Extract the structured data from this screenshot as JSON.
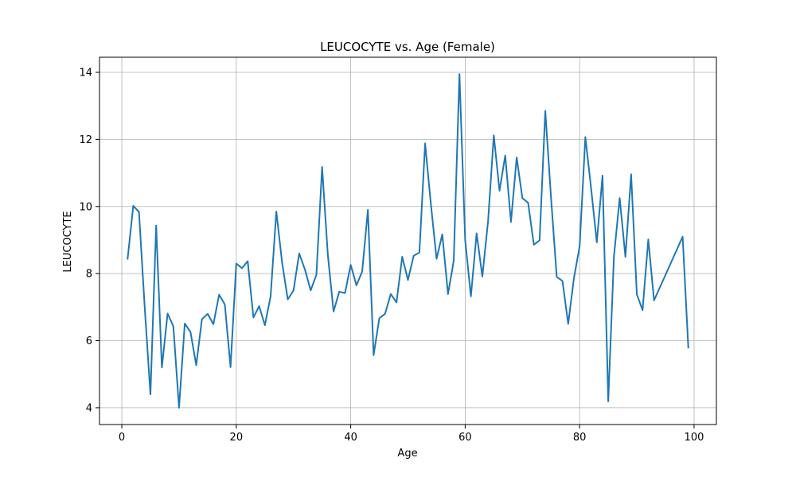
{
  "chart_data": {
    "type": "line",
    "title": "LEUCOCYTE vs. Age (Female)",
    "xlabel": "Age",
    "ylabel": "LEUCOCYTE",
    "xlim": [
      -3.9,
      103.9
    ],
    "ylim": [
      3.5,
      14.45
    ],
    "xticks": [
      0,
      20,
      40,
      60,
      80,
      100
    ],
    "yticks": [
      4,
      6,
      8,
      10,
      12,
      14
    ],
    "grid": true,
    "line_color": "#1f77b4",
    "x": [
      1,
      2,
      3,
      4,
      5,
      6,
      7,
      8,
      9,
      10,
      11,
      12,
      13,
      14,
      15,
      16,
      17,
      18,
      19,
      20,
      21,
      22,
      23,
      24,
      25,
      26,
      27,
      28,
      29,
      30,
      31,
      32,
      33,
      34,
      35,
      36,
      37,
      38,
      39,
      40,
      41,
      42,
      43,
      44,
      45,
      46,
      47,
      48,
      49,
      50,
      51,
      52,
      53,
      54,
      55,
      56,
      57,
      58,
      59,
      60,
      61,
      62,
      63,
      64,
      65,
      66,
      67,
      68,
      69,
      70,
      71,
      72,
      73,
      74,
      75,
      76,
      77,
      78,
      79,
      80,
      81,
      82,
      83,
      84,
      85,
      86,
      87,
      88,
      89,
      90,
      91,
      92,
      93,
      98,
      99
    ],
    "series": [
      {
        "values": [
          8.42,
          10.02,
          9.84,
          7.0,
          4.4,
          9.43,
          5.2,
          6.81,
          6.43,
          4.0,
          6.51,
          6.26,
          5.27,
          6.64,
          6.8,
          6.49,
          7.37,
          7.08,
          5.21,
          8.3,
          8.16,
          8.37,
          6.69,
          7.03,
          6.46,
          7.32,
          9.85,
          8.34,
          7.23,
          7.5,
          8.6,
          8.12,
          7.5,
          7.96,
          11.18,
          8.56,
          6.87,
          7.46,
          7.42,
          8.26,
          7.65,
          8.06,
          9.9,
          5.57,
          6.67,
          6.8,
          7.39,
          7.14,
          8.5,
          7.81,
          8.53,
          8.63,
          11.88,
          10.08,
          8.44,
          9.17,
          7.39,
          8.38,
          13.95,
          9.0,
          7.32,
          9.2,
          7.91,
          9.56,
          12.12,
          10.47,
          11.52,
          9.54,
          11.46,
          10.25,
          10.11,
          8.86,
          8.99,
          12.85,
          10.27,
          7.9,
          7.78,
          6.5,
          7.86,
          8.81,
          12.07,
          10.55,
          8.93,
          10.92,
          4.19,
          8.52,
          10.25,
          8.5,
          10.96,
          7.38,
          6.91,
          9.02,
          7.2,
          9.1,
          5.77
        ]
      }
    ]
  }
}
